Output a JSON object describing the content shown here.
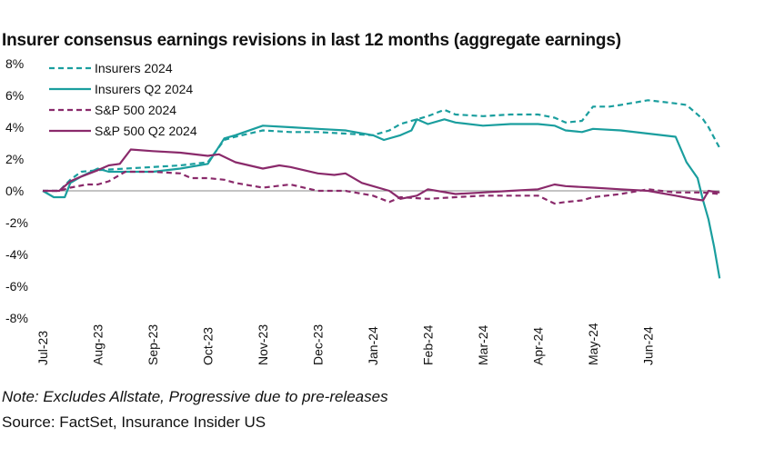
{
  "chart_data": {
    "type": "line",
    "title": "Insurer consensus earnings revisions in last 12 months (aggregate earnings)",
    "xlabel": "",
    "ylabel": "",
    "x_tick_labels": [
      "Jul-23",
      "Aug-23",
      "Sep-23",
      "Oct-23",
      "Nov-23",
      "Dec-23",
      "Jan-24",
      "Feb-24",
      "Mar-24",
      "Apr-24",
      "May-24",
      "Jun-24"
    ],
    "y_tick_labels": [
      "8%",
      "6%",
      "4%",
      "2%",
      "0%",
      "-2%",
      "-4%",
      "-6%",
      "-8%"
    ],
    "ylim": [
      -8,
      8
    ],
    "xlim_months": [
      0,
      12.3
    ],
    "grid": false,
    "zero_line": true,
    "legend_position": "top-left",
    "series": [
      {
        "name": "Insurers 2024",
        "color": "#1a9e9e",
        "style": "dashed",
        "x": [
          0,
          0.3,
          0.5,
          0.7,
          1,
          1.5,
          2,
          2.5,
          3,
          3.3,
          3.5,
          4,
          4.5,
          5,
          5.5,
          6,
          6.3,
          6.5,
          7,
          7.3,
          7.5,
          8,
          8.5,
          9,
          9.3,
          9.5,
          9.8,
          10,
          10.3,
          10.5,
          11,
          11.5,
          11.7,
          12,
          12.1,
          12.3
        ],
        "y": [
          0,
          0,
          0.7,
          1.2,
          1.3,
          1.4,
          1.5,
          1.6,
          1.8,
          3.2,
          3.4,
          3.8,
          3.7,
          3.7,
          3.6,
          3.5,
          3.8,
          4.2,
          4.7,
          5.1,
          4.8,
          4.7,
          4.8,
          4.8,
          4.6,
          4.3,
          4.4,
          5.3,
          5.3,
          5.4,
          5.7,
          5.5,
          5.4,
          4.5,
          4.0,
          2.7
        ]
      },
      {
        "name": "Insurers Q2 2024",
        "color": "#1a9e9e",
        "style": "solid",
        "x": [
          0,
          0.2,
          0.4,
          0.5,
          0.7,
          1,
          1.2,
          1.5,
          2,
          2.5,
          3,
          3.3,
          3.5,
          4,
          4.5,
          5,
          5.5,
          6,
          6.2,
          6.5,
          6.7,
          6.8,
          7,
          7.3,
          7.5,
          8,
          8.5,
          9,
          9.3,
          9.5,
          9.8,
          10,
          10.5,
          11,
          11.5,
          11.7,
          11.9,
          12.0,
          12.1,
          12.2,
          12.3
        ],
        "y": [
          0,
          -0.4,
          -0.4,
          0.5,
          0.9,
          1.4,
          1.2,
          1.2,
          1.2,
          1.4,
          1.7,
          3.3,
          3.5,
          4.1,
          4.0,
          3.9,
          3.8,
          3.5,
          3.2,
          3.5,
          3.8,
          4.5,
          4.2,
          4.5,
          4.3,
          4.1,
          4.2,
          4.2,
          4.1,
          3.8,
          3.7,
          3.9,
          3.8,
          3.6,
          3.4,
          1.8,
          0.8,
          -0.6,
          -1.8,
          -3.5,
          -5.5
        ]
      },
      {
        "name": "S&P 500 2024",
        "color": "#8a2a6b",
        "style": "dashed",
        "x": [
          0,
          0.3,
          0.5,
          0.8,
          1,
          1.2,
          1.5,
          2,
          2.5,
          2.7,
          3,
          3.3,
          3.5,
          4,
          4.5,
          5,
          5.5,
          6,
          6.3,
          6.5,
          7,
          7.5,
          8,
          8.5,
          9,
          9.3,
          9.5,
          9.8,
          10,
          10.5,
          11,
          11.5,
          12,
          12.3
        ],
        "y": [
          0,
          0,
          0.2,
          0.4,
          0.4,
          0.6,
          1.2,
          1.2,
          1.1,
          0.8,
          0.8,
          0.7,
          0.5,
          0.2,
          0.4,
          0,
          0,
          -0.3,
          -0.7,
          -0.4,
          -0.5,
          -0.4,
          -0.3,
          -0.3,
          -0.3,
          -0.8,
          -0.7,
          -0.6,
          -0.4,
          -0.2,
          0.1,
          -0.1,
          -0.1,
          -0.2
        ]
      },
      {
        "name": "S&P 500 Q2 2024",
        "color": "#8a2a6b",
        "style": "solid",
        "x": [
          0,
          0.3,
          0.5,
          0.7,
          1,
          1.2,
          1.4,
          1.6,
          2,
          2.5,
          3,
          3.2,
          3.5,
          4,
          4.3,
          4.5,
          5,
          5.3,
          5.5,
          5.8,
          6,
          6.3,
          6.5,
          6.8,
          7,
          7.5,
          8,
          8.5,
          9,
          9.3,
          9.5,
          10,
          10.5,
          11,
          11.5,
          11.8,
          12,
          12.1,
          12.3
        ],
        "y": [
          0,
          0,
          0.6,
          0.9,
          1.3,
          1.6,
          1.7,
          2.6,
          2.5,
          2.4,
          2.2,
          2.3,
          1.8,
          1.4,
          1.6,
          1.5,
          1.1,
          1.0,
          1.1,
          0.5,
          0.3,
          0,
          -0.5,
          -0.3,
          0.1,
          -0.2,
          -0.1,
          0,
          0.1,
          0.4,
          0.3,
          0.2,
          0.1,
          0,
          -0.3,
          -0.5,
          -0.6,
          0,
          -0.1
        ]
      }
    ]
  },
  "footer": {
    "note": "Note: Excludes Allstate, Progressive due to pre-releases",
    "source": "Source: FactSet, Insurance Insider US"
  }
}
